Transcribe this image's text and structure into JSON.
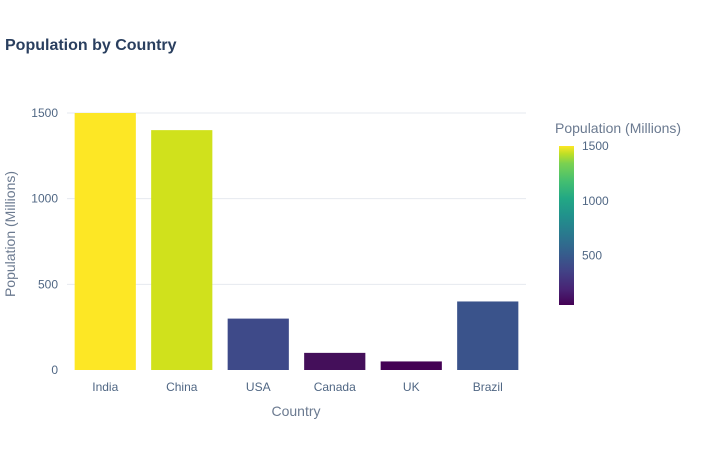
{
  "chart_data": {
    "type": "bar",
    "title": "Population by Country",
    "xlabel": "Country",
    "ylabel": "Population (Millions)",
    "categories": [
      "India",
      "China",
      "USA",
      "Canada",
      "UK",
      "Brazil"
    ],
    "values": [
      1500,
      1400,
      300,
      100,
      50,
      400
    ],
    "ylim": [
      0,
      1500
    ],
    "y_ticks": [
      0,
      500,
      1000,
      1500
    ],
    "grid": true,
    "legend": "none",
    "colorbar": {
      "title": "Population (Millions)",
      "colorscale": "viridis",
      "range": [
        50,
        1500
      ],
      "ticks": [
        500,
        1000,
        1500
      ]
    },
    "bar_colors": [
      "#fde725",
      "#d0e11c",
      "#3e4a89",
      "#440f5a",
      "#440154",
      "#3a538b"
    ]
  }
}
